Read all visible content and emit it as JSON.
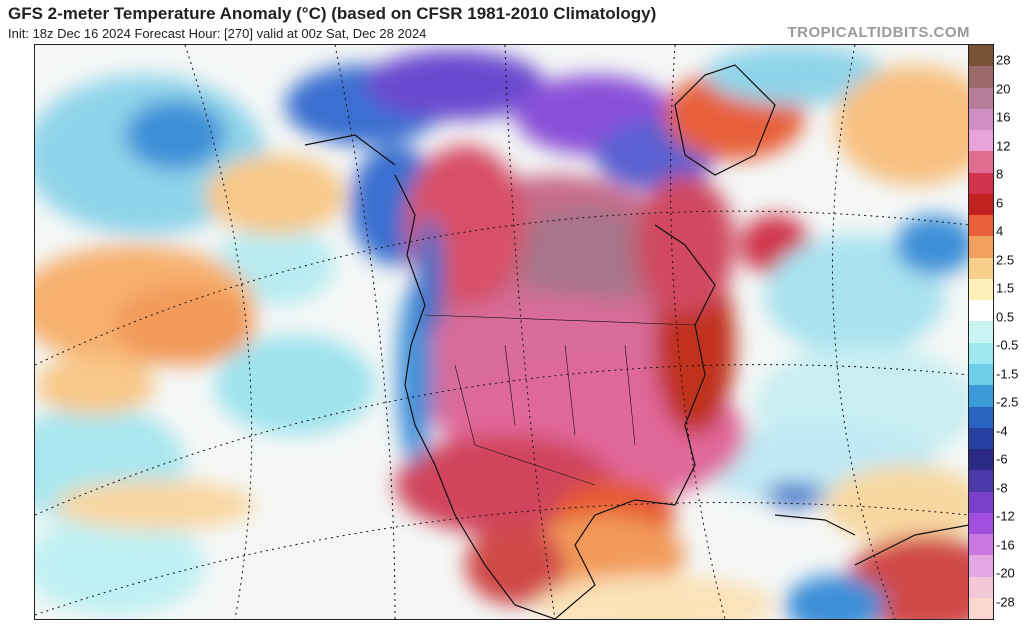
{
  "header": {
    "title": "GFS 2-meter Temperature Anomaly (°C) (based on CFSR 1981-2010 Climatology)",
    "subtitle": "Init: 18z Dec 16 2024   Forecast Hour: [270]   valid at 00z Sat, Dec 28 2024",
    "brand": "TROPICALTIDBITS.COM"
  },
  "colorbar": {
    "labels": [
      "28",
      "20",
      "16",
      "12",
      "8",
      "6",
      "4",
      "2.5",
      "1.5",
      "0.5",
      "-0.5",
      "-1.5",
      "-2.5",
      "-4",
      "-6",
      "-8",
      "-12",
      "-16",
      "-20",
      "-28"
    ],
    "colors": [
      "#7a5238",
      "#9c6a6a",
      "#b57d97",
      "#cf8fc2",
      "#e8a3d8",
      "#e06c90",
      "#d0344c",
      "#c0231f",
      "#e8603a",
      "#f2a060",
      "#f8cf8a",
      "#fdf0b8",
      "#ffffff",
      "#c8f4f4",
      "#9ee8ee",
      "#6ecde8",
      "#3c9ad8",
      "#2a62c0",
      "#2840a0",
      "#2a2a84",
      "#4a3aa8",
      "#7a40c8",
      "#a050dc",
      "#c878e0",
      "#e4a8e4",
      "#f2c8d8",
      "#fad8d0"
    ]
  }
}
